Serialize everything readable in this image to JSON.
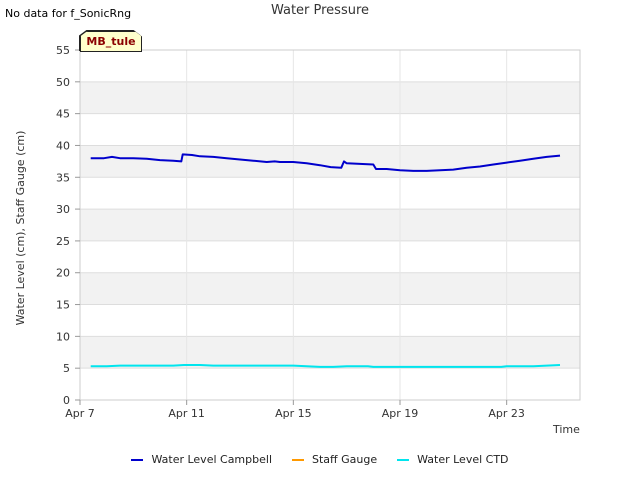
{
  "header": {
    "no_data_note": "No data for f_SonicRng"
  },
  "chart_data": {
    "type": "line",
    "title": "Water Pressure",
    "site_label": "MB_tule",
    "xlabel": "Time",
    "ylabel": "Water Level (cm), Staff Gauge (cm)",
    "xlim_days": [
      7,
      25.75
    ],
    "ylim": [
      0,
      55
    ],
    "x_ticks": [
      {
        "label": "Apr 7",
        "day": 7
      },
      {
        "label": "Apr 11",
        "day": 11
      },
      {
        "label": "Apr 15",
        "day": 15
      },
      {
        "label": "Apr 19",
        "day": 19
      },
      {
        "label": "Apr 23",
        "day": 23
      }
    ],
    "y_ticks": [
      0,
      5,
      10,
      15,
      20,
      25,
      30,
      35,
      40,
      45,
      50,
      55
    ],
    "grid": true,
    "legend_position": "bottom-center",
    "series": [
      {
        "name": "Water Level Campbell",
        "color": "#0000cc",
        "x": [
          7.4,
          7.9,
          8.2,
          8.5,
          9.0,
          9.5,
          10.0,
          10.5,
          10.8,
          10.85,
          11.2,
          11.5,
          12.0,
          12.5,
          13.0,
          13.5,
          14.0,
          14.3,
          14.5,
          15.0,
          15.5,
          16.0,
          16.4,
          16.8,
          16.9,
          17.0,
          17.5,
          18.0,
          18.1,
          18.5,
          19.0,
          19.5,
          20.0,
          20.5,
          21.0,
          21.5,
          22.0,
          22.5,
          23.0,
          23.5,
          24.0,
          24.5,
          25.0
        ],
        "values": [
          38.0,
          38.0,
          38.2,
          38.0,
          38.0,
          37.9,
          37.7,
          37.6,
          37.5,
          38.6,
          38.5,
          38.3,
          38.2,
          38.0,
          37.8,
          37.6,
          37.4,
          37.5,
          37.4,
          37.4,
          37.2,
          36.9,
          36.6,
          36.5,
          37.5,
          37.2,
          37.1,
          37.0,
          36.3,
          36.3,
          36.1,
          36.0,
          36.0,
          36.1,
          36.2,
          36.5,
          36.7,
          37.0,
          37.3,
          37.6,
          37.9,
          38.2,
          38.4
        ]
      },
      {
        "name": "Staff Gauge",
        "color": "#ff9900",
        "x": [],
        "values": []
      },
      {
        "name": "Water Level CTD",
        "color": "#00e5ee",
        "x": [
          7.4,
          8.0,
          8.5,
          9.5,
          10.5,
          10.9,
          11.5,
          12.0,
          13.0,
          14.0,
          15.0,
          16.0,
          16.5,
          17.0,
          17.8,
          18.0,
          19.0,
          20.0,
          21.0,
          22.0,
          22.8,
          23.0,
          24.0,
          24.5,
          25.0
        ],
        "values": [
          5.3,
          5.3,
          5.4,
          5.4,
          5.4,
          5.5,
          5.5,
          5.4,
          5.4,
          5.4,
          5.4,
          5.2,
          5.2,
          5.3,
          5.3,
          5.2,
          5.2,
          5.2,
          5.2,
          5.2,
          5.2,
          5.3,
          5.3,
          5.4,
          5.5
        ]
      }
    ]
  }
}
